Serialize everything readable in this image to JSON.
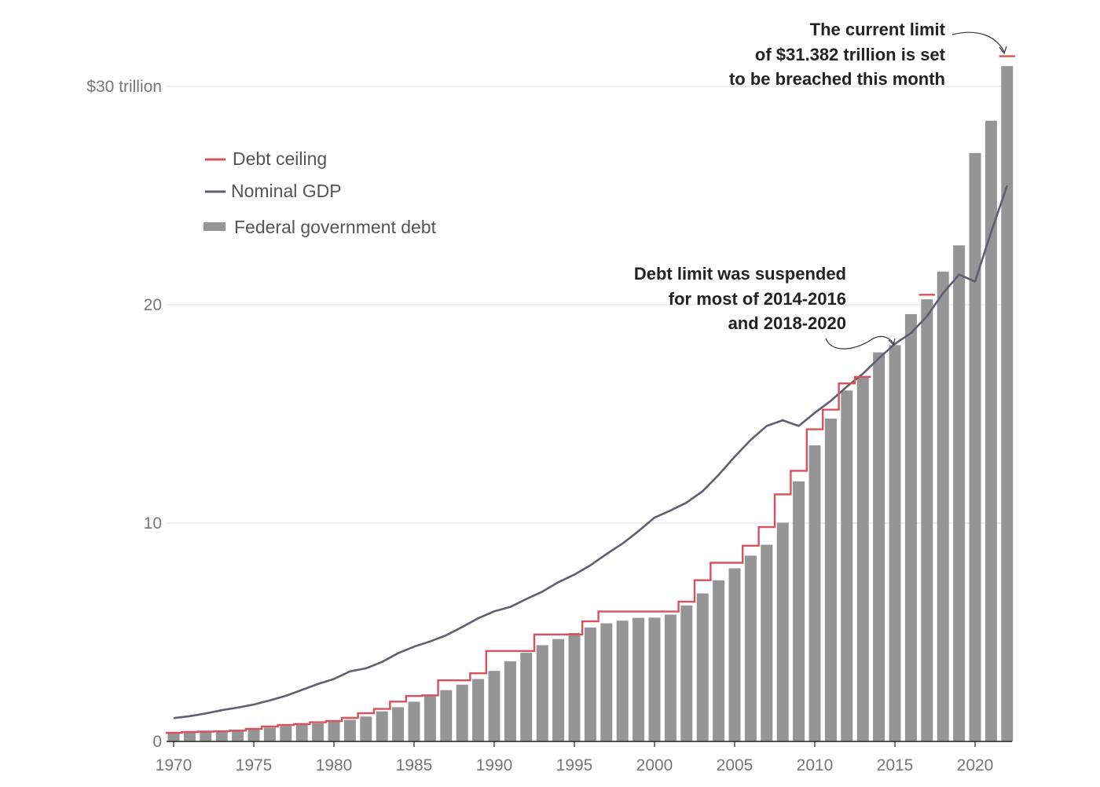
{
  "chart_data": {
    "type": "bar",
    "title": "",
    "xlabel": "",
    "ylabel": "",
    "ylim": [
      0,
      30
    ],
    "y_ticks": [
      {
        "value": 0,
        "label": "0"
      },
      {
        "value": 10,
        "label": "10"
      },
      {
        "value": 20,
        "label": "20"
      },
      {
        "value": 30,
        "label": "$30 trillion"
      }
    ],
    "x_ticks": [
      1970,
      1975,
      1980,
      1985,
      1990,
      1995,
      2000,
      2005,
      2010,
      2015,
      2020
    ],
    "legend": [
      {
        "key": "ceiling",
        "label": "Debt ceiling",
        "color": "#d9505f",
        "marker": "line"
      },
      {
        "key": "gdp",
        "label": "Nominal GDP",
        "color": "#5f5f6e",
        "marker": "line"
      },
      {
        "key": "debt",
        "label": "Federal government debt",
        "color": "#959595",
        "marker": "bar"
      }
    ],
    "years": [
      1970,
      1971,
      1972,
      1973,
      1974,
      1975,
      1976,
      1977,
      1978,
      1979,
      1980,
      1981,
      1982,
      1983,
      1984,
      1985,
      1986,
      1987,
      1988,
      1989,
      1990,
      1991,
      1992,
      1993,
      1994,
      1995,
      1996,
      1997,
      1998,
      1999,
      2000,
      2001,
      2002,
      2003,
      2004,
      2005,
      2006,
      2007,
      2008,
      2009,
      2010,
      2011,
      2012,
      2013,
      2014,
      2015,
      2016,
      2017,
      2018,
      2019,
      2020,
      2021,
      2022
    ],
    "series": [
      {
        "name": "Federal government debt",
        "type": "bar",
        "color": "#959595",
        "values": [
          0.38,
          0.41,
          0.44,
          0.47,
          0.48,
          0.54,
          0.63,
          0.71,
          0.78,
          0.83,
          0.91,
          0.99,
          1.14,
          1.38,
          1.57,
          1.82,
          2.13,
          2.35,
          2.6,
          2.86,
          3.23,
          3.67,
          4.06,
          4.41,
          4.69,
          4.97,
          5.22,
          5.41,
          5.53,
          5.66,
          5.67,
          5.81,
          6.23,
          6.78,
          7.38,
          7.93,
          8.51,
          9.01,
          10.02,
          11.91,
          13.56,
          14.79,
          16.07,
          16.74,
          17.82,
          18.15,
          19.57,
          20.25,
          21.52,
          22.72,
          26.95,
          28.43,
          30.93
        ]
      },
      {
        "name": "Nominal GDP",
        "type": "line",
        "color": "#5f5f6e",
        "values": [
          1.07,
          1.16,
          1.28,
          1.43,
          1.55,
          1.69,
          1.88,
          2.09,
          2.36,
          2.63,
          2.86,
          3.21,
          3.35,
          3.64,
          4.04,
          4.34,
          4.58,
          4.86,
          5.24,
          5.64,
          5.96,
          6.16,
          6.52,
          6.86,
          7.29,
          7.64,
          8.07,
          8.58,
          9.06,
          9.63,
          10.25,
          10.58,
          10.94,
          11.46,
          12.21,
          13.04,
          13.81,
          14.45,
          14.71,
          14.45,
          15.05,
          15.6,
          16.25,
          16.84,
          17.55,
          18.21,
          18.7,
          19.48,
          20.53,
          21.38,
          21.06,
          23.32,
          25.46
        ]
      },
      {
        "name": "Debt ceiling",
        "type": "step",
        "color": "#d9505f",
        "values": [
          0.395,
          0.43,
          0.45,
          0.465,
          0.495,
          0.577,
          0.682,
          0.752,
          0.798,
          0.879,
          0.935,
          1.079,
          1.29,
          1.49,
          1.824,
          2.079,
          2.111,
          2.8,
          2.8,
          3.123,
          4.145,
          4.145,
          4.145,
          4.9,
          4.9,
          4.9,
          5.5,
          5.95,
          5.95,
          5.95,
          5.95,
          5.95,
          6.4,
          7.384,
          8.184,
          8.184,
          8.965,
          9.815,
          11.315,
          12.394,
          14.294,
          15.194,
          16.394,
          16.699,
          null,
          null,
          null,
          20.456,
          null,
          null,
          null,
          null,
          31.382
        ]
      }
    ],
    "annotations": [
      {
        "key": "current",
        "lines": [
          "The current limit",
          "of $31.382 trillion is set",
          "to be breached this month"
        ]
      },
      {
        "key": "suspended",
        "lines": [
          "Debt limit was suspended",
          "for most of 2014-2016",
          "and 2018-2020"
        ]
      }
    ]
  }
}
